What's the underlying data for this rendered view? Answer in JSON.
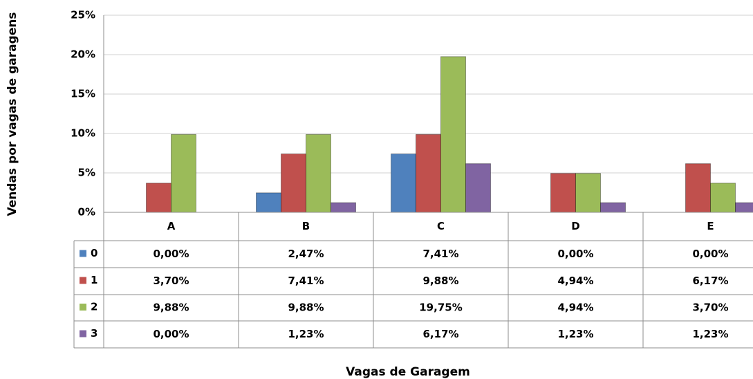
{
  "chart_data": {
    "type": "bar",
    "y_axis_label": "Vendas por vagas de garagens",
    "x_axis_label": "Vagas de Garagem",
    "categories": [
      "A",
      "B",
      "C",
      "D",
      "E"
    ],
    "series": [
      {
        "name": "0",
        "color": "#4f81bd",
        "values": [
          0,
          2.47,
          7.41,
          0,
          0
        ],
        "value_labels": [
          "0,00%",
          "2,47%",
          "7,41%",
          "0,00%",
          "0,00%"
        ]
      },
      {
        "name": "1",
        "color": "#c0504d",
        "values": [
          3.7,
          7.41,
          9.88,
          4.94,
          6.17
        ],
        "value_labels": [
          "3,70%",
          "7,41%",
          "9,88%",
          "4,94%",
          "6,17%"
        ]
      },
      {
        "name": "2",
        "color": "#9bbb59",
        "values": [
          9.88,
          9.88,
          19.75,
          4.94,
          3.7
        ],
        "value_labels": [
          "9,88%",
          "9,88%",
          "19,75%",
          "4,94%",
          "3,70%"
        ]
      },
      {
        "name": "3",
        "color": "#8064a2",
        "values": [
          0,
          1.23,
          6.17,
          1.23,
          1.23
        ],
        "value_labels": [
          "0,00%",
          "1,23%",
          "6,17%",
          "1,23%",
          "1,23%"
        ]
      }
    ],
    "ylim": [
      0,
      25
    ],
    "yticks": [
      {
        "value": 0,
        "label": "0%"
      },
      {
        "value": 5,
        "label": "5%"
      },
      {
        "value": 10,
        "label": "10%"
      },
      {
        "value": 15,
        "label": "15%"
      },
      {
        "value": 20,
        "label": "20%"
      },
      {
        "value": 25,
        "label": "25%"
      }
    ],
    "grid": true
  }
}
